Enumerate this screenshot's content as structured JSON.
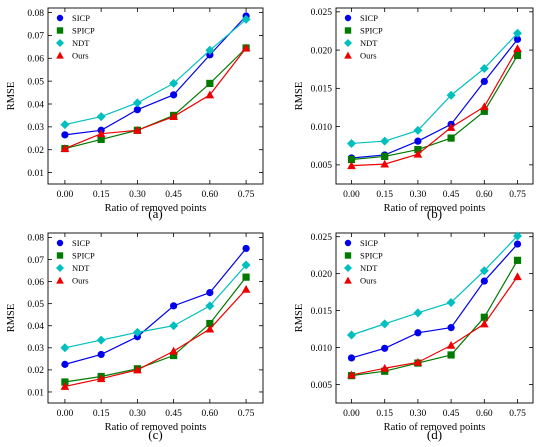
{
  "chart_data": [
    {
      "type": "line",
      "panel_label": "(a)",
      "xlabel": "Ratio of removed points",
      "ylabel": "RMSE",
      "x": [
        0.0,
        0.15,
        0.3,
        0.45,
        0.6,
        0.75
      ],
      "x_ticks": [
        "0.00",
        "0.15",
        "0.30",
        "0.45",
        "0.60",
        "0.75"
      ],
      "ylim": [
        0.005,
        0.082
      ],
      "y_ticks": [
        0.01,
        0.02,
        0.03,
        0.04,
        0.05,
        0.06,
        0.07,
        0.08
      ],
      "y_tick_labels": [
        "0.01",
        "0.02",
        "0.03",
        "0.04",
        "0.05",
        "0.06",
        "0.07",
        "0.08"
      ],
      "legend_position": "top-left",
      "series": [
        {
          "name": "SICP",
          "color": "#0000ee",
          "marker": "circle",
          "values": [
            0.0265,
            0.0285,
            0.0375,
            0.044,
            0.0615,
            0.0785
          ]
        },
        {
          "name": "SPICP",
          "color": "#007a00",
          "marker": "square",
          "values": [
            0.0205,
            0.0245,
            0.0285,
            0.035,
            0.049,
            0.0645
          ]
        },
        {
          "name": "NDT",
          "color": "#00bfbf",
          "marker": "diamond",
          "values": [
            0.031,
            0.0345,
            0.0405,
            0.049,
            0.0635,
            0.077
          ]
        },
        {
          "name": "Ours",
          "color": "#ee0000",
          "marker": "triangle",
          "values": [
            0.0205,
            0.027,
            0.0285,
            0.0345,
            0.044,
            0.0645
          ]
        }
      ]
    },
    {
      "type": "line",
      "panel_label": "(b)",
      "xlabel": "Ratio of removed points",
      "ylabel": "RMSE",
      "x": [
        0.0,
        0.15,
        0.3,
        0.45,
        0.6,
        0.75
      ],
      "x_ticks": [
        "0.00",
        "0.15",
        "0.30",
        "0.45",
        "0.60",
        "0.75"
      ],
      "ylim": [
        0.0025,
        0.0255
      ],
      "y_ticks": [
        0.005,
        0.01,
        0.015,
        0.02,
        0.025
      ],
      "y_tick_labels": [
        "0.005",
        "0.010",
        "0.015",
        "0.020",
        "0.025"
      ],
      "legend_position": "top-left",
      "series": [
        {
          "name": "SICP",
          "color": "#0000ee",
          "marker": "circle",
          "values": [
            0.0059,
            0.0063,
            0.0081,
            0.0103,
            0.0159,
            0.0214
          ]
        },
        {
          "name": "SPICP",
          "color": "#007a00",
          "marker": "square",
          "values": [
            0.0057,
            0.0061,
            0.007,
            0.0085,
            0.012,
            0.0193
          ]
        },
        {
          "name": "NDT",
          "color": "#00bfbf",
          "marker": "diamond",
          "values": [
            0.0078,
            0.0081,
            0.0095,
            0.0141,
            0.0176,
            0.0222
          ]
        },
        {
          "name": "Ours",
          "color": "#ee0000",
          "marker": "triangle",
          "values": [
            0.0049,
            0.0051,
            0.0064,
            0.0099,
            0.0126,
            0.0202
          ]
        }
      ]
    },
    {
      "type": "line",
      "panel_label": "(c)",
      "xlabel": "Ratio of removed points",
      "ylabel": "RMSE",
      "x": [
        0.0,
        0.15,
        0.3,
        0.45,
        0.6,
        0.75
      ],
      "x_ticks": [
        "0.00",
        "0.15",
        "0.30",
        "0.45",
        "0.60",
        "0.75"
      ],
      "ylim": [
        0.005,
        0.082
      ],
      "y_ticks": [
        0.01,
        0.02,
        0.03,
        0.04,
        0.05,
        0.06,
        0.07,
        0.08
      ],
      "y_tick_labels": [
        "0.01",
        "0.02",
        "0.03",
        "0.04",
        "0.05",
        "0.06",
        "0.07",
        "0.08"
      ],
      "legend_position": "top-left",
      "series": [
        {
          "name": "SICP",
          "color": "#0000ee",
          "marker": "circle",
          "values": [
            0.0225,
            0.027,
            0.035,
            0.049,
            0.055,
            0.075
          ]
        },
        {
          "name": "SPICP",
          "color": "#007a00",
          "marker": "square",
          "values": [
            0.0145,
            0.017,
            0.0205,
            0.0265,
            0.041,
            0.062
          ]
        },
        {
          "name": "NDT",
          "color": "#00bfbf",
          "marker": "diamond",
          "values": [
            0.03,
            0.0335,
            0.037,
            0.04,
            0.049,
            0.0675
          ]
        },
        {
          "name": "Ours",
          "color": "#ee0000",
          "marker": "triangle",
          "values": [
            0.0125,
            0.016,
            0.02,
            0.0285,
            0.0385,
            0.0565
          ]
        }
      ]
    },
    {
      "type": "line",
      "panel_label": "(d)",
      "xlabel": "Ratio of removed points",
      "ylabel": "RMSE",
      "x": [
        0.0,
        0.15,
        0.3,
        0.45,
        0.6,
        0.75
      ],
      "x_ticks": [
        "0.00",
        "0.15",
        "0.30",
        "0.45",
        "0.60",
        "0.75"
      ],
      "ylim": [
        0.0025,
        0.0255
      ],
      "y_ticks": [
        0.005,
        0.01,
        0.015,
        0.02,
        0.025
      ],
      "y_tick_labels": [
        "0.005",
        "0.010",
        "0.015",
        "0.020",
        "0.025"
      ],
      "legend_position": "top-left",
      "series": [
        {
          "name": "SICP",
          "color": "#0000ee",
          "marker": "circle",
          "values": [
            0.0086,
            0.0099,
            0.012,
            0.0127,
            0.019,
            0.024
          ]
        },
        {
          "name": "SPICP",
          "color": "#007a00",
          "marker": "square",
          "values": [
            0.0062,
            0.0068,
            0.0079,
            0.009,
            0.0141,
            0.0218
          ]
        },
        {
          "name": "NDT",
          "color": "#00bfbf",
          "marker": "diamond",
          "values": [
            0.0117,
            0.0132,
            0.0147,
            0.0161,
            0.0204,
            0.0251
          ]
        },
        {
          "name": "Ours",
          "color": "#ee0000",
          "marker": "triangle",
          "values": [
            0.0063,
            0.0072,
            0.008,
            0.0103,
            0.0132,
            0.0196
          ]
        }
      ]
    }
  ]
}
